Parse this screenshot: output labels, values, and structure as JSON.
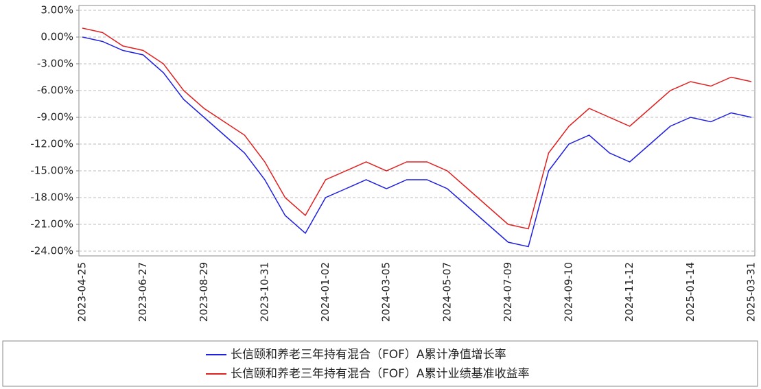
{
  "chart_data": {
    "type": "line",
    "categories": [
      "2023-04-25",
      null,
      null,
      "2023-06-27",
      null,
      null,
      "2023-08-29",
      null,
      null,
      "2023-10-31",
      null,
      null,
      "2024-01-02",
      null,
      null,
      "2024-03-05",
      null,
      null,
      "2024-05-07",
      null,
      null,
      "2024-07-09",
      null,
      null,
      "2024-09-10",
      null,
      null,
      "2024-11-12",
      null,
      null,
      "2025-01-14",
      null,
      null,
      "2025-03-31"
    ],
    "series": [
      {
        "name": "长信颐和养老三年持有混合（FOF）A累计净值增长率",
        "color": "#1f1fe0",
        "values": [
          0,
          -0.5,
          -1.5,
          -2,
          -4,
          -7,
          -9,
          -11,
          -13,
          -16,
          -20,
          -22,
          -18,
          -17,
          -16,
          -17,
          -16,
          -16,
          -17,
          -19,
          -21,
          -23,
          -23.5,
          -15,
          -12,
          -11,
          -13,
          -14,
          -12,
          -10,
          -9,
          -9.5,
          -8.5,
          -9
        ]
      },
      {
        "name": "长信颐和养老三年持有混合（FOF）A累计业绩基准收益率",
        "color": "#e01f1f",
        "values": [
          1,
          0.5,
          -1,
          -1.5,
          -3,
          -6,
          -8,
          -9.5,
          -11,
          -14,
          -18,
          -20,
          -16,
          -15,
          -14,
          -15,
          -14,
          -14,
          -15,
          -17,
          -19,
          -21,
          -21.5,
          -13,
          -10,
          -8,
          -9,
          -10,
          -8,
          -6,
          -5,
          -5.5,
          -4.5,
          -5
        ]
      }
    ],
    "ylim": [
      -24,
      3
    ],
    "yticks": [
      {
        "value": 3,
        "label": "3.00%"
      },
      {
        "value": 0,
        "label": "0.00%"
      },
      {
        "value": -3,
        "label": "-3.00%"
      },
      {
        "value": -6,
        "label": "-6.00%"
      },
      {
        "value": -9,
        "label": "-9.00%"
      },
      {
        "value": -12,
        "label": "-12.00%"
      },
      {
        "value": -15,
        "label": "-15.00%"
      },
      {
        "value": -18,
        "label": "-18.00%"
      },
      {
        "value": -21,
        "label": "-21.00%"
      },
      {
        "value": -24,
        "label": "-24.00%"
      }
    ],
    "grid": true
  }
}
